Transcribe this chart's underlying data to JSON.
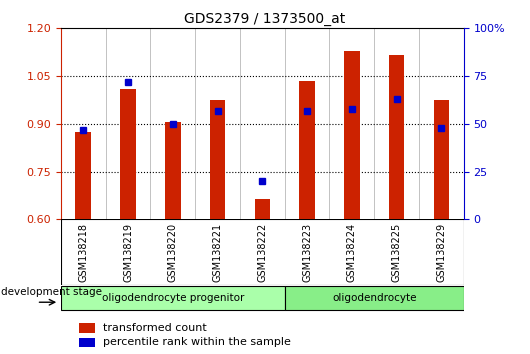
{
  "title": "GDS2379 / 1373500_at",
  "samples": [
    "GSM138218",
    "GSM138219",
    "GSM138220",
    "GSM138221",
    "GSM138222",
    "GSM138223",
    "GSM138224",
    "GSM138225",
    "GSM138229"
  ],
  "transformed_count": [
    0.875,
    1.01,
    0.905,
    0.975,
    0.665,
    1.035,
    1.13,
    1.115,
    0.975
  ],
  "percentile_rank": [
    47,
    72,
    50,
    57,
    20,
    57,
    58,
    63,
    48
  ],
  "ylim_left": [
    0.6,
    1.2
  ],
  "ylim_right": [
    0,
    100
  ],
  "yticks_left": [
    0.6,
    0.75,
    0.9,
    1.05,
    1.2
  ],
  "yticks_right": [
    0,
    25,
    50,
    75,
    100
  ],
  "ytick_labels_right": [
    "0",
    "25",
    "50",
    "75",
    "100%"
  ],
  "bar_color": "#cc2200",
  "dot_color": "#0000cc",
  "groups": [
    {
      "label": "oligodendrocyte progenitor",
      "start": 0,
      "end": 5,
      "color": "#aaffaa"
    },
    {
      "label": "oligodendrocyte",
      "start": 5,
      "end": 9,
      "color": "#88ee88"
    }
  ],
  "development_stage_label": "development stage",
  "legend_items": [
    {
      "label": "transformed count",
      "color": "#cc2200"
    },
    {
      "label": "percentile rank within the sample",
      "color": "#0000cc"
    }
  ],
  "bar_width": 0.35,
  "background_color": "#ffffff",
  "label_area_color": "#cccccc",
  "label_area_border_color": "#aaaaaa"
}
